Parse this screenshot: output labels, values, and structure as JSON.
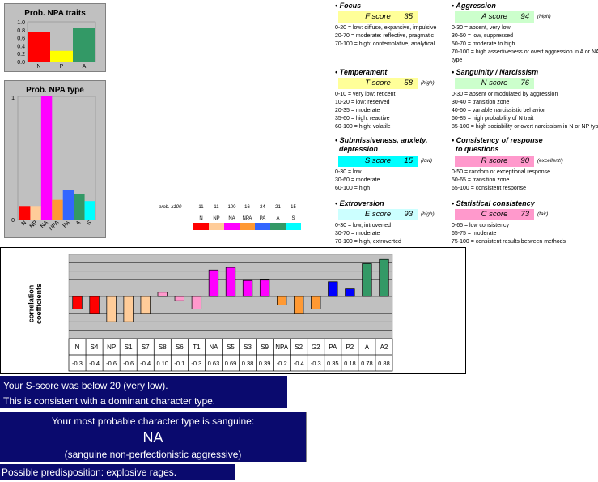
{
  "traits_chart": {
    "title": "Prob. NPA traits",
    "ylim": [
      0,
      1
    ],
    "yticks": [
      "0.0",
      "0.2",
      "0.4",
      "0.6",
      "0.8",
      "1.0"
    ],
    "categories": [
      "N",
      "P",
      "A"
    ],
    "values": [
      0.74,
      0.27,
      0.85
    ],
    "colors": [
      "#ff0000",
      "#ffff00",
      "#339966"
    ]
  },
  "type_chart": {
    "title": "Prob. NPA type",
    "ylim": [
      0,
      1
    ],
    "yticks": [
      "0",
      "1"
    ],
    "categories": [
      "N",
      "NP",
      "NA",
      "NPA",
      "PA",
      "A",
      "S"
    ],
    "values": [
      0.11,
      0.11,
      1.0,
      0.16,
      0.24,
      0.21,
      0.15
    ],
    "colors": [
      "#ff0000",
      "#ffcc99",
      "#ff00ff",
      "#ff9933",
      "#3366ff",
      "#339966",
      "#00ffff"
    ]
  },
  "prob_legend": {
    "label": "prob. x100",
    "values": [
      "11",
      "11",
      "100",
      "16",
      "24",
      "21",
      "15"
    ],
    "categories": [
      "N",
      "NP",
      "NA",
      "NPA",
      "PA",
      "A",
      "S"
    ],
    "colors": [
      "#ff0000",
      "#ffcc99",
      "#ff00ff",
      "#ff9933",
      "#3366ff",
      "#339966",
      "#00ffff"
    ]
  },
  "traits": [
    {
      "title": "• Focus",
      "score_label": "F score",
      "score": "35",
      "qualifier": "",
      "color": "#ffff99",
      "desc": [
        "0-20 = low: diffuse, expansive, impulsive",
        "20-70 = moderate: reflective, pragmatic",
        "70-100 = high: contemplative, analytical"
      ]
    },
    {
      "title": "• Aggression",
      "score_label": "A score",
      "score": "94",
      "qualifier": "(high)",
      "color": "#ccffcc",
      "desc": [
        "0-30 = absent, very low",
        "30-50 = low, suppressed",
        "50-70 = moderate to high",
        "70-100 = high assertiveness or overt aggression in A or NA",
        "type"
      ]
    },
    {
      "title": "• Temperament",
      "score_label": "T score",
      "score": "58",
      "qualifier": "(high)",
      "color": "#ffff99",
      "desc": [
        "0-10 = very low: reticent",
        "10-20 = low: reserved",
        "20-35 = moderate",
        "35-60 = high: reactive",
        "60-100 = high: volatile"
      ]
    },
    {
      "title": "• Sanguinity / Narcissism",
      "score_label": "N score",
      "score": "76",
      "qualifier": "",
      "color": "#ccffcc",
      "desc": [
        "0-30 = absent or modulated by aggression",
        "30-40 = transition zone",
        "40-60 = variable narcissistic behavior",
        "60-85 = high probability of N trait",
        "85-100 = high sociability or overt narcissism in N or NP type"
      ]
    },
    {
      "title": "• Submissiveness, anxiety,",
      "title2": "depression",
      "score_label": "S score",
      "score": "15",
      "qualifier": "(low)",
      "color": "#00ffff",
      "desc": [
        "0-30 = low",
        "30-60 = moderate",
        "60-100 = high"
      ]
    },
    {
      "title": "• Consistency of response",
      "title2": "to questions",
      "score_label": "R score",
      "score": "90",
      "qualifier": "(excellent!)",
      "color": "#ff99cc",
      "desc": [
        "0-50 = random or exceptional response",
        "50-65 = transition zone",
        "65-100 = consistent response"
      ]
    },
    {
      "title": "• Extroversion",
      "score_label": "E score",
      "score": "93",
      "qualifier": "(high)",
      "color": "#ccffff",
      "desc": [
        "0-30 = low, introverted",
        "30-70 = moderate",
        "70-100 = high, extroverted"
      ]
    },
    {
      "title": "• Statistical consistency",
      "score_label": "C score",
      "score": "73",
      "qualifier": "(fair)",
      "color": "#ff99cc",
      "desc": [
        "0-65 = low consistency",
        "65-75 = moderate",
        "75-100 = consistent results between methods"
      ]
    }
  ],
  "chart_data": {
    "type": "bar",
    "ylabel": "correlation coefficients",
    "ylim": [
      -1,
      1
    ],
    "categories": [
      "N",
      "S4",
      "NP",
      "S1",
      "S7",
      "S8",
      "S6",
      "T1",
      "NA",
      "S5",
      "S3",
      "S9",
      "NPA",
      "S2",
      "G2",
      "PA",
      "P2",
      "A",
      "A2"
    ],
    "value_labels": [
      "-0.3",
      "-0.4",
      "-0.6",
      "-0.6",
      "-0.4",
      "0.10",
      "-0.1",
      "-0.3",
      "0.63",
      "0.69",
      "0.38",
      "0.39",
      "-0.2",
      "-0.4",
      "-0.3",
      "0.35",
      "0.18",
      "0.78",
      "0.88"
    ],
    "values": [
      -0.3,
      -0.4,
      -0.6,
      -0.6,
      -0.4,
      0.1,
      -0.1,
      -0.3,
      0.63,
      0.69,
      0.38,
      0.39,
      -0.2,
      -0.4,
      -0.3,
      0.35,
      0.18,
      0.78,
      0.88
    ],
    "colors": [
      "#ff0000",
      "#ff0000",
      "#ffcc99",
      "#ffcc99",
      "#ffcc99",
      "#ff99cc",
      "#ff99cc",
      "#ff99cc",
      "#ff00ff",
      "#ff00ff",
      "#ff00ff",
      "#ff00ff",
      "#ff9933",
      "#ff9933",
      "#ff9933",
      "#0000ff",
      "#0000ff",
      "#339966",
      "#339966"
    ],
    "grid": true
  },
  "results": {
    "line1": "Your S-score was below 20 (very low).",
    "line2": "This is consistent with a dominant character type.",
    "probable_intro": "Your most probable character type is sanguine:",
    "probable_type": "NA",
    "probable_desc": "(sanguine non-perfectionistic aggressive)",
    "predisposition": "Possible predisposition: explosive rages."
  }
}
